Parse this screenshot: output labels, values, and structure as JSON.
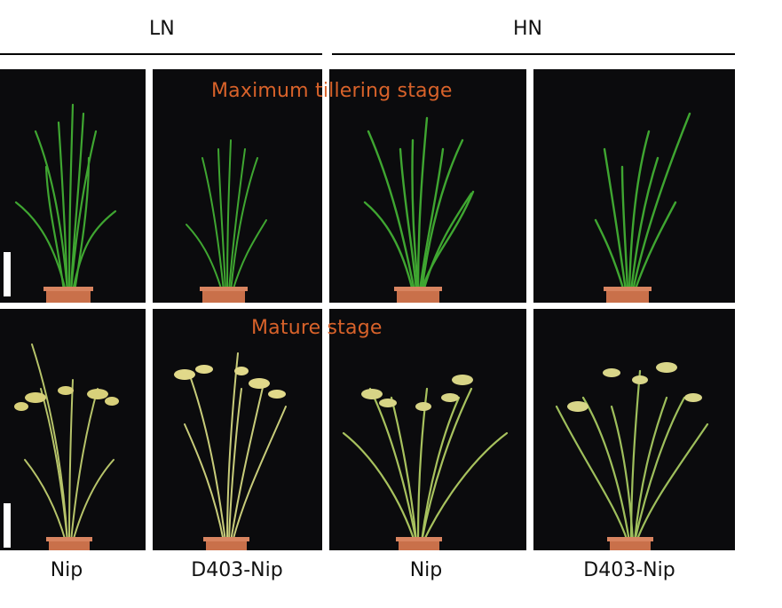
{
  "groups": [
    {
      "label": "LN"
    },
    {
      "label": "HN"
    }
  ],
  "stages": {
    "top": "Maximum tillering stage",
    "bottom": "Mature stage"
  },
  "columns": [
    {
      "label": "Nip"
    },
    {
      "label": "D403-Nip"
    },
    {
      "label": "Nip"
    },
    {
      "label": "D403-Nip"
    }
  ],
  "colors": {
    "panel_background": "#0b0b0d",
    "stage_text": "#d8622a",
    "leaf_green": "#3fa631",
    "mature_straw": "#b7c46a",
    "pot": "#c9704a"
  }
}
